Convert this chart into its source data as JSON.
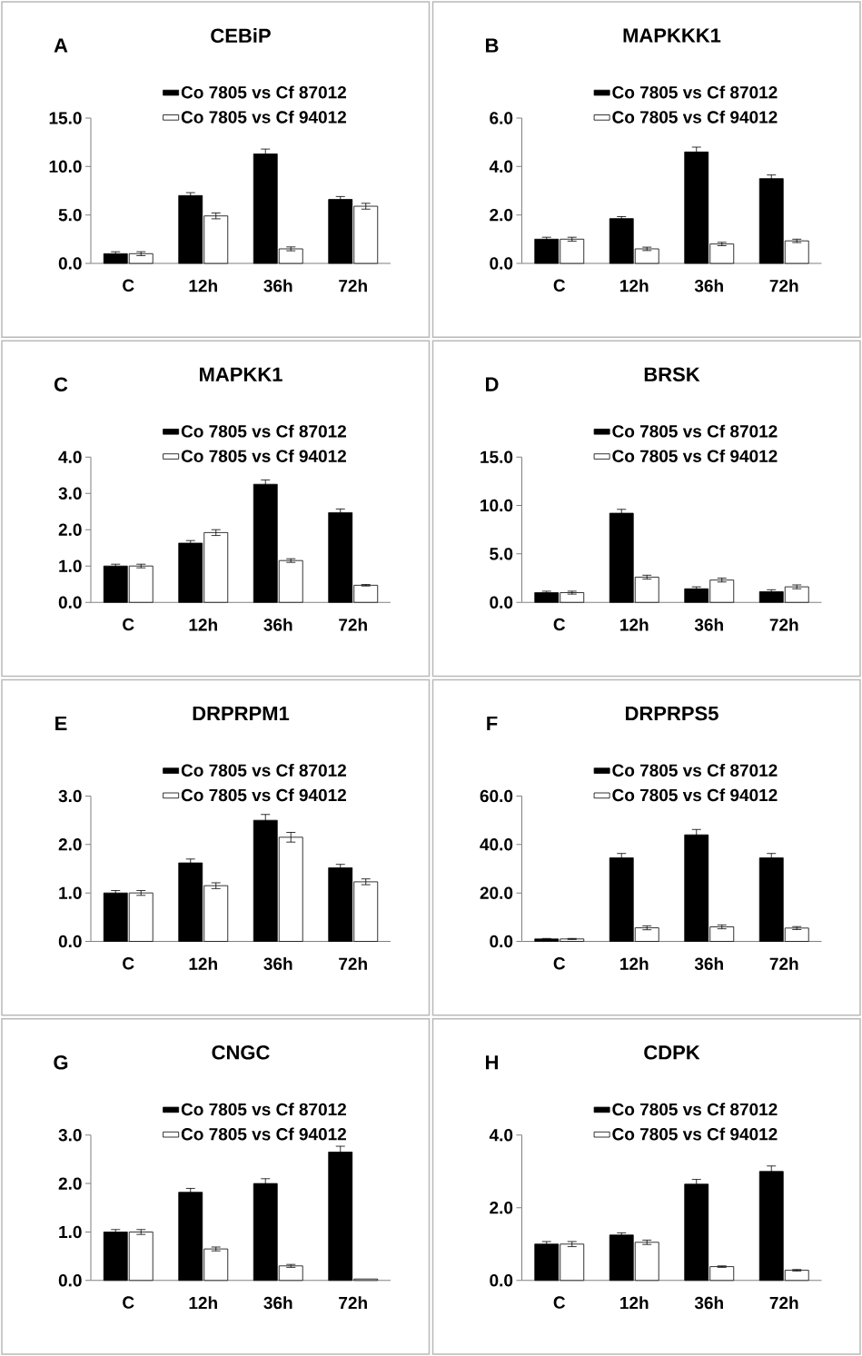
{
  "chart_data": [
    {
      "type": "bar",
      "title": "CEBiP",
      "annotations": [
        "A"
      ],
      "legend": "top",
      "categories": [
        "C",
        "12h",
        "36h",
        "72h"
      ],
      "ylim": [
        0,
        15
      ],
      "yticks": [
        {
          "value": 0,
          "label": "0.0"
        },
        {
          "value": 5,
          "label": "5.0"
        },
        {
          "value": 10,
          "label": "10.0"
        },
        {
          "value": 15,
          "label": "15.0"
        }
      ],
      "series": [
        {
          "name": "Co 7805 vs Cf 87012",
          "color": "#000000",
          "values": [
            1.0,
            7.0,
            11.3,
            6.6
          ],
          "errors": [
            0.2,
            0.3,
            0.5,
            0.3
          ]
        },
        {
          "name": "Co 7805 vs Cf 94012",
          "color": "#ffffff",
          "values": [
            1.0,
            4.9,
            1.5,
            5.9
          ],
          "errors": [
            0.2,
            0.3,
            0.2,
            0.3
          ]
        }
      ]
    },
    {
      "type": "bar",
      "title": "MAPKKK1",
      "annotations": [
        "B"
      ],
      "legend": "top",
      "categories": [
        "C",
        "12h",
        "36h",
        "72h"
      ],
      "ylim": [
        0,
        6
      ],
      "yticks": [
        {
          "value": 0,
          "label": "0.0"
        },
        {
          "value": 2,
          "label": "2.0"
        },
        {
          "value": 4,
          "label": "4.0"
        },
        {
          "value": 6,
          "label": "6.0"
        }
      ],
      "series": [
        {
          "name": "Co 7805 vs Cf 87012",
          "color": "#000000",
          "values": [
            1.0,
            1.85,
            4.6,
            3.5
          ],
          "errors": [
            0.08,
            0.08,
            0.2,
            0.15
          ]
        },
        {
          "name": "Co 7805 vs Cf 94012",
          "color": "#ffffff",
          "values": [
            1.0,
            0.6,
            0.8,
            0.93
          ],
          "errors": [
            0.08,
            0.07,
            0.07,
            0.07
          ]
        }
      ]
    },
    {
      "type": "bar",
      "title": "MAPKK1",
      "annotations": [
        "C"
      ],
      "legend": "top",
      "categories": [
        "C",
        "12h",
        "36h",
        "72h"
      ],
      "ylim": [
        0,
        4
      ],
      "yticks": [
        {
          "value": 0,
          "label": "0.0"
        },
        {
          "value": 1,
          "label": "1.0"
        },
        {
          "value": 2,
          "label": "2.0"
        },
        {
          "value": 3,
          "label": "3.0"
        },
        {
          "value": 4,
          "label": "4.0"
        }
      ],
      "series": [
        {
          "name": "Co 7805 vs Cf 87012",
          "color": "#000000",
          "values": [
            1.0,
            1.63,
            3.25,
            2.47
          ],
          "errors": [
            0.05,
            0.07,
            0.12,
            0.1
          ]
        },
        {
          "name": "Co 7805 vs Cf 94012",
          "color": "#ffffff",
          "values": [
            1.0,
            1.92,
            1.15,
            0.47
          ],
          "errors": [
            0.05,
            0.08,
            0.05,
            0.02
          ]
        }
      ]
    },
    {
      "type": "bar",
      "title": "BRSK",
      "annotations": [
        "D"
      ],
      "legend": "top",
      "categories": [
        "C",
        "12h",
        "36h",
        "72h"
      ],
      "ylim": [
        0,
        15
      ],
      "yticks": [
        {
          "value": 0,
          "label": "0.0"
        },
        {
          "value": 5,
          "label": "5.0"
        },
        {
          "value": 10,
          "label": "10.0"
        },
        {
          "value": 15,
          "label": "15.0"
        }
      ],
      "series": [
        {
          "name": "Co 7805 vs Cf 87012",
          "color": "#000000",
          "values": [
            1.0,
            9.2,
            1.4,
            1.1
          ],
          "errors": [
            0.15,
            0.4,
            0.2,
            0.2
          ]
        },
        {
          "name": "Co 7805 vs Cf 94012",
          "color": "#ffffff",
          "values": [
            1.0,
            2.6,
            2.3,
            1.6
          ],
          "errors": [
            0.15,
            0.2,
            0.2,
            0.2
          ]
        }
      ]
    },
    {
      "type": "bar",
      "title": "DRPRPM1",
      "annotations": [
        "E"
      ],
      "legend": "top",
      "categories": [
        "C",
        "12h",
        "36h",
        "72h"
      ],
      "ylim": [
        0,
        3
      ],
      "yticks": [
        {
          "value": 0,
          "label": "0.0"
        },
        {
          "value": 1,
          "label": "1.0"
        },
        {
          "value": 2,
          "label": "2.0"
        },
        {
          "value": 3,
          "label": "3.0"
        }
      ],
      "series": [
        {
          "name": "Co 7805 vs Cf 87012",
          "color": "#000000",
          "values": [
            1.0,
            1.62,
            2.5,
            1.52
          ],
          "errors": [
            0.05,
            0.08,
            0.12,
            0.07
          ]
        },
        {
          "name": "Co 7805 vs Cf 94012",
          "color": "#ffffff",
          "values": [
            1.0,
            1.15,
            2.15,
            1.23
          ],
          "errors": [
            0.05,
            0.06,
            0.1,
            0.06
          ]
        }
      ]
    },
    {
      "type": "bar",
      "title": "DRPRPS5",
      "annotations": [
        "F"
      ],
      "legend": "top",
      "categories": [
        "C",
        "12h",
        "36h",
        "72h"
      ],
      "ylim": [
        0,
        60
      ],
      "yticks": [
        {
          "value": 0,
          "label": "0.0"
        },
        {
          "value": 20,
          "label": "20.0"
        },
        {
          "value": 40,
          "label": "40.0"
        },
        {
          "value": 60,
          "label": "60.0"
        }
      ],
      "series": [
        {
          "name": "Co 7805 vs Cf 87012",
          "color": "#000000",
          "values": [
            1.0,
            34.5,
            44.0,
            34.5
          ],
          "errors": [
            0.2,
            1.8,
            2.2,
            1.8
          ]
        },
        {
          "name": "Co 7805 vs Cf 94012",
          "color": "#ffffff",
          "values": [
            1.0,
            5.6,
            6.0,
            5.5
          ],
          "errors": [
            0.2,
            0.8,
            0.8,
            0.6
          ]
        }
      ]
    },
    {
      "type": "bar",
      "title": "CNGC",
      "annotations": [
        "G"
      ],
      "legend": "top",
      "categories": [
        "C",
        "12h",
        "36h",
        "72h"
      ],
      "ylim": [
        0,
        3
      ],
      "yticks": [
        {
          "value": 0,
          "label": "0.0"
        },
        {
          "value": 1,
          "label": "1.0"
        },
        {
          "value": 2,
          "label": "2.0"
        },
        {
          "value": 3,
          "label": "3.0"
        }
      ],
      "series": [
        {
          "name": "Co 7805 vs Cf 87012",
          "color": "#000000",
          "values": [
            1.0,
            1.82,
            2.0,
            2.65
          ],
          "errors": [
            0.05,
            0.08,
            0.1,
            0.12
          ]
        },
        {
          "name": "Co 7805 vs Cf 94012",
          "color": "#ffffff",
          "values": [
            1.0,
            0.65,
            0.3,
            0.03
          ],
          "errors": [
            0.05,
            0.04,
            0.03,
            null
          ]
        }
      ]
    },
    {
      "type": "bar",
      "title": "CDPK",
      "annotations": [
        "H"
      ],
      "legend": "top",
      "categories": [
        "C",
        "12h",
        "36h",
        "72h"
      ],
      "ylim": [
        0,
        4
      ],
      "yticks": [
        {
          "value": 0,
          "label": "0.0"
        },
        {
          "value": 2,
          "label": "2.0"
        },
        {
          "value": 4,
          "label": "4.0"
        }
      ],
      "series": [
        {
          "name": "Co 7805 vs Cf 87012",
          "color": "#000000",
          "values": [
            1.0,
            1.25,
            2.65,
            3.0
          ],
          "errors": [
            0.07,
            0.06,
            0.13,
            0.15
          ]
        },
        {
          "name": "Co 7805 vs Cf 94012",
          "color": "#ffffff",
          "values": [
            1.0,
            1.05,
            0.38,
            0.28
          ],
          "errors": [
            0.07,
            0.06,
            0.02,
            0.02
          ]
        }
      ]
    }
  ]
}
